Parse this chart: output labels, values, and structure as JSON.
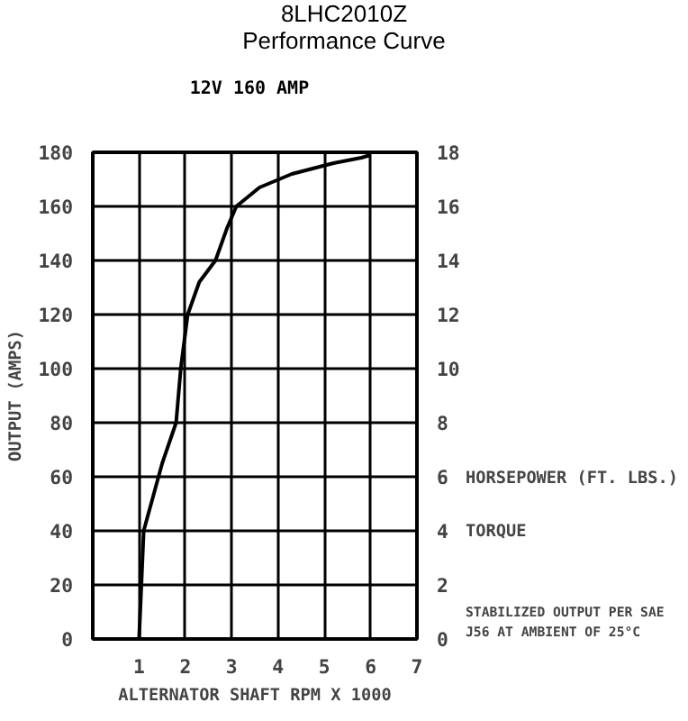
{
  "chart_data": {
    "type": "line",
    "title": "8LHC2010Z",
    "subtitle": "Performance Curve",
    "annotations": [
      "12V 160 AMP",
      "HORSEPOWER (FT. LBS.)",
      "TORQUE",
      "STABILIZED OUTPUT PER SAE J56 AT AMBIENT OF 25°C"
    ],
    "xlabel": "ALTERNATOR SHAFT RPM X 1000",
    "ylabel": "OUTPUT (AMPS)",
    "x": [
      1.0,
      1.1,
      1.5,
      1.8,
      1.9,
      2.05,
      2.3,
      2.65,
      2.9,
      3.1,
      3.6,
      4.3,
      5.2,
      5.8,
      6.0
    ],
    "series": [
      {
        "color": "#000000",
        "values": [
          0,
          40,
          65,
          80,
          100,
          120,
          132,
          140,
          152,
          160,
          167,
          172,
          176,
          178,
          179
        ]
      }
    ],
    "xlim": [
      0,
      7
    ],
    "xticks": [
      1,
      2,
      3,
      4,
      5,
      6,
      7
    ],
    "ylim": [
      0,
      180
    ],
    "yticks": [
      0,
      20,
      40,
      60,
      80,
      100,
      120,
      140,
      160,
      180
    ],
    "y2lim": [
      0,
      18
    ],
    "y2ticks": [
      0,
      2,
      4,
      6,
      8,
      10,
      12,
      14,
      16,
      18
    ],
    "grid": true,
    "marker": "none",
    "line_style": "solid"
  }
}
